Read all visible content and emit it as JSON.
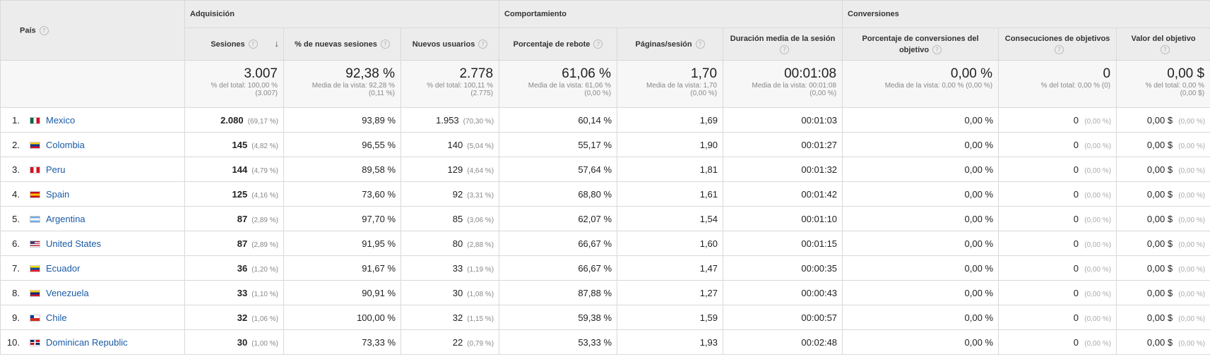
{
  "headers": {
    "country": "País",
    "groups": {
      "acquisition": "Adquisición",
      "behavior": "Comportamiento",
      "conversions": "Conversiones"
    },
    "metrics": {
      "sessions": "Sesiones",
      "pct_new_sessions": "% de nuevas sesiones",
      "new_users": "Nuevos usuarios",
      "bounce_rate": "Porcentaje de rebote",
      "pages_session": "Páginas/sesión",
      "avg_duration": "Duración media de la sesión",
      "conv_rate": "Porcentaje de conversiones del objetivo",
      "goal_completions": "Consecuciones de objetivos",
      "goal_value": "Valor del objetivo"
    },
    "help_glyph": "?",
    "sort_glyph": "↓"
  },
  "totals": {
    "sessions": {
      "value": "3.007",
      "sub1": "% del total: 100,00 %",
      "sub2": "(3.007)"
    },
    "pct_new_sessions": {
      "value": "92,38 %",
      "sub1": "Media de la vista: 92,28 %",
      "sub2": "(0,11 %)"
    },
    "new_users": {
      "value": "2.778",
      "sub1": "% del total: 100,11 %",
      "sub2": "(2.775)"
    },
    "bounce_rate": {
      "value": "61,06 %",
      "sub1": "Media de la vista: 61,06 %",
      "sub2": "(0,00 %)"
    },
    "pages_session": {
      "value": "1,70",
      "sub1": "Media de la vista: 1,70",
      "sub2": "(0,00 %)"
    },
    "avg_duration": {
      "value": "00:01:08",
      "sub1": "Media de la vista: 00:01:08",
      "sub2": "(0,00 %)"
    },
    "conv_rate": {
      "value": "0,00 %",
      "sub1": "Media de la vista: 0,00 % (0,00 %)",
      "sub2": ""
    },
    "goal_completions": {
      "value": "0",
      "sub1": "% del total: 0,00 % (0)",
      "sub2": ""
    },
    "goal_value": {
      "value": "0,00 $",
      "sub1": "% del total: 0,00 %",
      "sub2": "(0,00 $)"
    }
  },
  "rows": [
    {
      "rank": "1.",
      "country": "Mexico",
      "flag_colors": [
        "#006847",
        "#ffffff",
        "#ce1126"
      ],
      "flag_dir": "v",
      "sessions": "2.080",
      "sessions_pct": "(69,17 %)",
      "pct_new": "93,89 %",
      "new_users": "1.953",
      "new_users_pct": "(70,30 %)",
      "bounce": "60,14 %",
      "pages": "1,69",
      "duration": "00:01:03",
      "conv": "0,00 %",
      "goals": "0",
      "goals_pct": "(0,00 %)",
      "value": "0,00 $",
      "value_pct": "(0,00 %)"
    },
    {
      "rank": "2.",
      "country": "Colombia",
      "flag_colors": [
        "#fcd116",
        "#003893",
        "#ce1126"
      ],
      "flag_dir": "h",
      "sessions": "145",
      "sessions_pct": "(4,82 %)",
      "pct_new": "96,55 %",
      "new_users": "140",
      "new_users_pct": "(5,04 %)",
      "bounce": "55,17 %",
      "pages": "1,90",
      "duration": "00:01:27",
      "conv": "0,00 %",
      "goals": "0",
      "goals_pct": "(0,00 %)",
      "value": "0,00 $",
      "value_pct": "(0,00 %)"
    },
    {
      "rank": "3.",
      "country": "Peru",
      "flag_colors": [
        "#d91023",
        "#ffffff",
        "#d91023"
      ],
      "flag_dir": "v",
      "sessions": "144",
      "sessions_pct": "(4,79 %)",
      "pct_new": "89,58 %",
      "new_users": "129",
      "new_users_pct": "(4,64 %)",
      "bounce": "57,64 %",
      "pages": "1,81",
      "duration": "00:01:32",
      "conv": "0,00 %",
      "goals": "0",
      "goals_pct": "(0,00 %)",
      "value": "0,00 $",
      "value_pct": "(0,00 %)"
    },
    {
      "rank": "4.",
      "country": "Spain",
      "flag_colors": [
        "#c60b1e",
        "#ffc400",
        "#c60b1e"
      ],
      "flag_dir": "h",
      "sessions": "125",
      "sessions_pct": "(4,16 %)",
      "pct_new": "73,60 %",
      "new_users": "92",
      "new_users_pct": "(3,31 %)",
      "bounce": "68,80 %",
      "pages": "1,61",
      "duration": "00:01:42",
      "conv": "0,00 %",
      "goals": "0",
      "goals_pct": "(0,00 %)",
      "value": "0,00 $",
      "value_pct": "(0,00 %)"
    },
    {
      "rank": "5.",
      "country": "Argentina",
      "flag_colors": [
        "#74acdf",
        "#ffffff",
        "#74acdf"
      ],
      "flag_dir": "h",
      "sessions": "87",
      "sessions_pct": "(2,89 %)",
      "pct_new": "97,70 %",
      "new_users": "85",
      "new_users_pct": "(3,06 %)",
      "bounce": "62,07 %",
      "pages": "1,54",
      "duration": "00:01:10",
      "conv": "0,00 %",
      "goals": "0",
      "goals_pct": "(0,00 %)",
      "value": "0,00 $",
      "value_pct": "(0,00 %)"
    },
    {
      "rank": "6.",
      "country": "United States",
      "flag_colors": [
        "#3c3b6e",
        "#ffffff",
        "#b22234"
      ],
      "flag_dir": "us",
      "sessions": "87",
      "sessions_pct": "(2,89 %)",
      "pct_new": "91,95 %",
      "new_users": "80",
      "new_users_pct": "(2,88 %)",
      "bounce": "66,67 %",
      "pages": "1,60",
      "duration": "00:01:15",
      "conv": "0,00 %",
      "goals": "0",
      "goals_pct": "(0,00 %)",
      "value": "0,00 $",
      "value_pct": "(0,00 %)"
    },
    {
      "rank": "7.",
      "country": "Ecuador",
      "flag_colors": [
        "#ffdd00",
        "#034ea2",
        "#ed1c24"
      ],
      "flag_dir": "h",
      "sessions": "36",
      "sessions_pct": "(1,20 %)",
      "pct_new": "91,67 %",
      "new_users": "33",
      "new_users_pct": "(1,19 %)",
      "bounce": "66,67 %",
      "pages": "1,47",
      "duration": "00:00:35",
      "conv": "0,00 %",
      "goals": "0",
      "goals_pct": "(0,00 %)",
      "value": "0,00 $",
      "value_pct": "(0,00 %)"
    },
    {
      "rank": "8.",
      "country": "Venezuela",
      "flag_colors": [
        "#ffcc00",
        "#00247d",
        "#cf142b"
      ],
      "flag_dir": "h",
      "sessions": "33",
      "sessions_pct": "(1,10 %)",
      "pct_new": "90,91 %",
      "new_users": "30",
      "new_users_pct": "(1,08 %)",
      "bounce": "87,88 %",
      "pages": "1,27",
      "duration": "00:00:43",
      "conv": "0,00 %",
      "goals": "0",
      "goals_pct": "(0,00 %)",
      "value": "0,00 $",
      "value_pct": "(0,00 %)"
    },
    {
      "rank": "9.",
      "country": "Chile",
      "flag_colors": [
        "#0039a6",
        "#ffffff",
        "#d52b1e"
      ],
      "flag_dir": "cl",
      "sessions": "32",
      "sessions_pct": "(1,06 %)",
      "pct_new": "100,00 %",
      "new_users": "32",
      "new_users_pct": "(1,15 %)",
      "bounce": "59,38 %",
      "pages": "1,59",
      "duration": "00:00:57",
      "conv": "0,00 %",
      "goals": "0",
      "goals_pct": "(0,00 %)",
      "value": "0,00 $",
      "value_pct": "(0,00 %)"
    },
    {
      "rank": "10.",
      "country": "Dominican Republic",
      "flag_colors": [
        "#002d62",
        "#ffffff",
        "#ce1126"
      ],
      "flag_dir": "do",
      "sessions": "30",
      "sessions_pct": "(1,00 %)",
      "pct_new": "73,33 %",
      "new_users": "22",
      "new_users_pct": "(0,79 %)",
      "bounce": "53,33 %",
      "pages": "1,93",
      "duration": "00:02:48",
      "conv": "0,00 %",
      "goals": "0",
      "goals_pct": "(0,00 %)",
      "value": "0,00 $",
      "value_pct": "(0,00 %)"
    }
  ]
}
